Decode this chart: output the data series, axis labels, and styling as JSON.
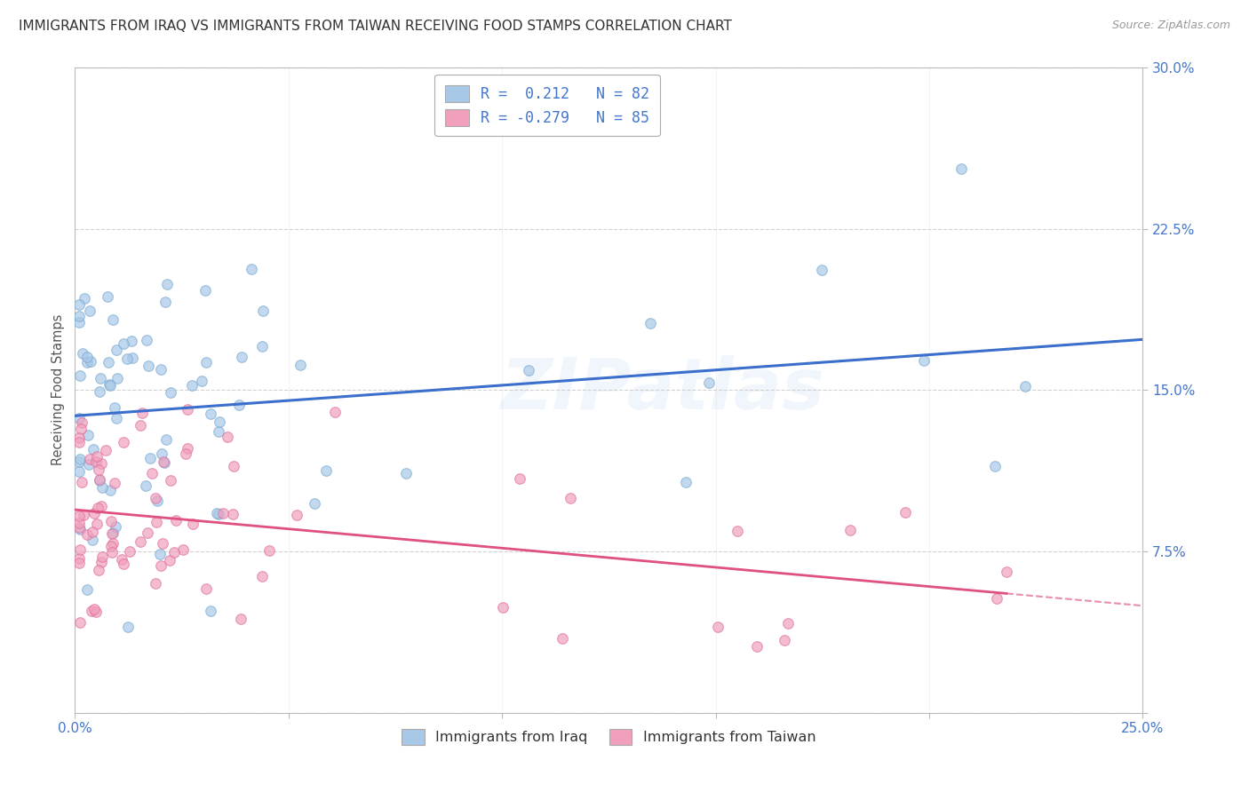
{
  "title": "IMMIGRANTS FROM IRAQ VS IMMIGRANTS FROM TAIWAN RECEIVING FOOD STAMPS CORRELATION CHART",
  "source": "Source: ZipAtlas.com",
  "ylabel_label": "Receiving Food Stamps",
  "legend_label_iraq": "Immigrants from Iraq",
  "legend_label_taiwan": "Immigrants from Taiwan",
  "legend_r_iraq": "R =  0.212   N = 82",
  "legend_r_taiwan": "R = -0.279   N = 85",
  "blue_color": "#A8C8E8",
  "pink_color": "#F0A0BC",
  "blue_edge": "#7AAAD0",
  "pink_edge": "#E070A0",
  "line_blue": "#3B6FCC",
  "line_pink": "#E05080",
  "watermark_text": "ZIPatlas",
  "watermark_color": "#4488DD",
  "R_iraq": 0.212,
  "N_iraq": 82,
  "R_taiwan": -0.279,
  "N_taiwan": 85,
  "xlim": [
    0.0,
    0.25
  ],
  "ylim": [
    0.0,
    0.3
  ],
  "yticks": [
    0.0,
    0.075,
    0.15,
    0.225,
    0.3
  ],
  "yticklabels": [
    "",
    "7.5%",
    "15.0%",
    "22.5%",
    "30.0%"
  ],
  "xticks": [
    0.0,
    0.05,
    0.1,
    0.15,
    0.2,
    0.25
  ],
  "xticklabels": [
    "0.0%",
    "",
    "",
    "",
    "",
    "25.0%"
  ],
  "tick_color": "#4477CC",
  "title_color": "#333333",
  "source_color": "#999999",
  "ylabel_color": "#555555",
  "bg_color": "#FFFFFF",
  "grid_color": "#CCCCCC",
  "spine_color": "#BBBBBB"
}
